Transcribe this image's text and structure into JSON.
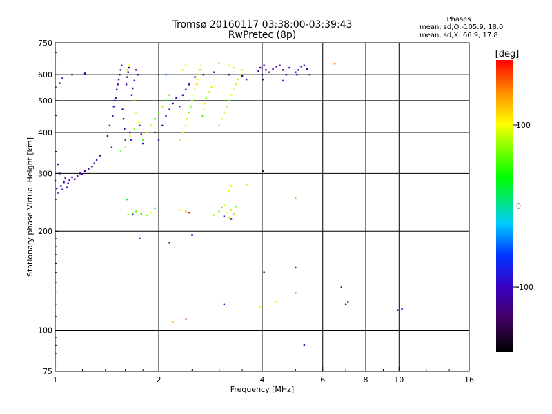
{
  "chart_data": {
    "type": "scatter",
    "title": "Tromsø 20160117 03:38:00-03:39:43",
    "subtitle": "RwPretec (8p)",
    "xlabel": "Frequency [MHz]",
    "ylabel": "Stationary phase Virtual Height [km]",
    "x_scale": "log",
    "y_scale": "log",
    "xlim": [
      1,
      16
    ],
    "ylim": [
      75,
      750
    ],
    "x_ticks": [
      1,
      2,
      4,
      6,
      8,
      10,
      16
    ],
    "y_ticks": [
      75,
      100,
      200,
      300,
      400,
      500,
      600,
      750
    ],
    "x_gridlines": [
      2,
      4,
      6,
      8,
      10
    ],
    "y_gridlines": [
      100,
      200,
      300,
      400,
      500,
      600
    ],
    "phase_stats": {
      "heading": "Phases",
      "line1": "mean, sd,O:-105.9, 18.0",
      "line2": "mean, sd,X:  66.9, 17.8"
    },
    "colorbar": {
      "label": "[deg]",
      "range": [
        -180,
        180
      ],
      "ticks": [
        {
          "value": 100,
          "label": "100"
        },
        {
          "value": 0,
          "label": "0"
        },
        {
          "value": -100,
          "label": "-100"
        }
      ]
    },
    "series": [
      {
        "values": [
          [
            1.0,
            285,
            -110
          ],
          [
            1.01,
            270,
            -110
          ],
          [
            1.02,
            262,
            -110
          ],
          [
            1.03,
            300,
            -110
          ],
          [
            1.04,
            275,
            -110
          ],
          [
            1.05,
            268,
            -110
          ],
          [
            1.06,
            282,
            -110
          ],
          [
            1.07,
            290,
            -110
          ],
          [
            1.08,
            272,
            -110
          ],
          [
            1.09,
            280,
            -110
          ],
          [
            1.1,
            286,
            -110
          ],
          [
            1.12,
            292,
            -110
          ],
          [
            1.14,
            288,
            -110
          ],
          [
            1.16,
            295,
            -110
          ],
          [
            1.18,
            300,
            -110
          ],
          [
            1.2,
            298,
            -110
          ],
          [
            1.22,
            305,
            -110
          ],
          [
            1.25,
            310,
            -110
          ],
          [
            1.28,
            315,
            -110
          ],
          [
            1.3,
            322,
            -110
          ],
          [
            1.32,
            330,
            -110
          ],
          [
            1.35,
            340,
            -110
          ],
          [
            1.02,
            320,
            -110
          ],
          [
            1.03,
            565,
            -110
          ],
          [
            1.05,
            585,
            -110
          ],
          [
            1.12,
            600,
            -110
          ],
          [
            1.22,
            605,
            -110
          ],
          [
            1.42,
            390,
            -110
          ],
          [
            1.44,
            420,
            -110
          ],
          [
            1.46,
            360,
            -110
          ],
          [
            1.47,
            450,
            -110
          ],
          [
            1.48,
            480,
            -110
          ],
          [
            1.49,
            500,
            -110
          ],
          [
            1.5,
            510,
            -110
          ],
          [
            1.51,
            540,
            -110
          ],
          [
            1.52,
            560,
            -110
          ],
          [
            1.53,
            580,
            -110
          ],
          [
            1.54,
            600,
            -110
          ],
          [
            1.55,
            620,
            -110
          ],
          [
            1.56,
            640,
            -110
          ],
          [
            1.57,
            470,
            -110
          ],
          [
            1.58,
            440,
            -110
          ],
          [
            1.59,
            410,
            -110
          ],
          [
            1.6,
            380,
            -110
          ],
          [
            1.61,
            560,
            -110
          ],
          [
            1.62,
            590,
            -110
          ],
          [
            1.63,
            610,
            -110
          ],
          [
            1.64,
            630,
            -110
          ],
          [
            1.65,
            400,
            -110
          ],
          [
            1.66,
            380,
            -110
          ],
          [
            1.67,
            520,
            -110
          ],
          [
            1.68,
            545,
            -110
          ],
          [
            1.7,
            575,
            -110
          ],
          [
            1.72,
            620,
            -110
          ],
          [
            1.74,
            600,
            -110
          ],
          [
            1.76,
            420,
            -110
          ],
          [
            1.78,
            395,
            -110
          ],
          [
            1.8,
            370,
            -110
          ],
          [
            1.95,
            400,
            -110
          ],
          [
            2.0,
            380,
            -110
          ],
          [
            2.05,
            420,
            -110
          ],
          [
            2.1,
            450,
            -110
          ],
          [
            2.15,
            470,
            -110
          ],
          [
            2.2,
            490,
            -110
          ],
          [
            2.25,
            510,
            -110
          ],
          [
            2.3,
            480,
            -110
          ],
          [
            2.35,
            520,
            -110
          ],
          [
            2.4,
            540,
            -110
          ],
          [
            2.45,
            560,
            -110
          ],
          [
            2.55,
            590,
            -110
          ],
          [
            2.7,
            600,
            -110
          ],
          [
            2.9,
            610,
            -110
          ],
          [
            3.2,
            600,
            -110
          ],
          [
            3.5,
            595,
            -110
          ],
          [
            3.6,
            580,
            -110
          ],
          [
            3.9,
            615,
            -110
          ],
          [
            3.95,
            630,
            -110
          ],
          [
            4.0,
            600,
            -110
          ],
          [
            4.02,
            580,
            -110
          ],
          [
            4.05,
            640,
            -110
          ],
          [
            4.1,
            620,
            -110
          ],
          [
            4.2,
            610,
            -110
          ],
          [
            4.3,
            625,
            -110
          ],
          [
            4.4,
            635,
            -110
          ],
          [
            4.5,
            640,
            -110
          ],
          [
            4.6,
            620,
            -110
          ],
          [
            4.7,
            600,
            -110
          ],
          [
            4.8,
            630,
            -110
          ],
          [
            5.0,
            610,
            -110
          ],
          [
            5.05,
            600,
            -110
          ],
          [
            5.1,
            620,
            -110
          ],
          [
            5.2,
            635,
            -110
          ],
          [
            5.3,
            640,
            -110
          ],
          [
            5.4,
            625,
            -110
          ],
          [
            5.5,
            600,
            -110
          ],
          [
            4.03,
            305,
            -115
          ],
          [
            3.1,
            120,
            -115
          ],
          [
            6.8,
            135,
            -115
          ],
          [
            7.0,
            120,
            -115
          ],
          [
            7.1,
            122,
            -115
          ],
          [
            5.3,
            90,
            -120
          ],
          [
            4.05,
            150,
            -120
          ],
          [
            5.0,
            155,
            -90
          ],
          [
            4.6,
            575,
            -60
          ],
          [
            9.9,
            115,
            -70
          ],
          [
            10.2,
            116,
            -70
          ],
          [
            1.68,
            225,
            -80
          ],
          [
            1.76,
            190,
            -80
          ],
          [
            2.5,
            195,
            -80
          ],
          [
            3.1,
            222,
            -80
          ],
          [
            2.15,
            185,
            -130
          ],
          [
            3.25,
            218,
            -125
          ],
          [
            2.4,
            230,
            -30
          ],
          [
            2.45,
            228,
            180
          ],
          [
            1.95,
            235,
            -10
          ],
          [
            2.1,
            600,
            -40
          ],
          [
            1.55,
            350,
            60
          ],
          [
            1.6,
            360,
            80
          ],
          [
            1.65,
            390,
            90
          ],
          [
            1.7,
            410,
            70
          ],
          [
            1.75,
            430,
            100
          ],
          [
            1.8,
            380,
            50
          ],
          [
            1.85,
            400,
            110
          ],
          [
            1.9,
            420,
            90
          ],
          [
            1.95,
            440,
            40
          ],
          [
            2.0,
            460,
            60
          ],
          [
            2.05,
            480,
            80
          ],
          [
            2.1,
            500,
            20
          ],
          [
            2.15,
            520,
            50
          ],
          [
            1.58,
            600,
            120
          ],
          [
            1.62,
            620,
            110
          ],
          [
            1.64,
            640,
            100
          ],
          [
            1.7,
            500,
            70
          ],
          [
            1.72,
            460,
            90
          ],
          [
            2.3,
            380,
            80
          ],
          [
            2.35,
            400,
            100
          ],
          [
            2.4,
            420,
            110
          ],
          [
            2.42,
            440,
            90
          ],
          [
            2.45,
            460,
            70
          ],
          [
            2.48,
            480,
            60
          ],
          [
            2.5,
            500,
            80
          ],
          [
            2.52,
            520,
            100
          ],
          [
            2.55,
            540,
            110
          ],
          [
            2.58,
            560,
            120
          ],
          [
            2.6,
            580,
            100
          ],
          [
            2.62,
            600,
            90
          ],
          [
            2.64,
            620,
            80
          ],
          [
            2.66,
            640,
            100
          ],
          [
            2.68,
            450,
            60
          ],
          [
            2.7,
            470,
            90
          ],
          [
            2.72,
            490,
            110
          ],
          [
            2.75,
            510,
            70
          ],
          [
            2.8,
            530,
            80
          ],
          [
            2.85,
            550,
            90
          ],
          [
            2.3,
            600,
            120
          ],
          [
            2.35,
            620,
            100
          ],
          [
            2.4,
            640,
            90
          ],
          [
            3.0,
            420,
            70
          ],
          [
            3.05,
            440,
            90
          ],
          [
            3.1,
            460,
            110
          ],
          [
            3.15,
            480,
            80
          ],
          [
            3.2,
            500,
            60
          ],
          [
            3.25,
            520,
            100
          ],
          [
            3.3,
            540,
            90
          ],
          [
            3.35,
            560,
            110
          ],
          [
            3.4,
            580,
            80
          ],
          [
            3.45,
            600,
            70
          ],
          [
            3.5,
            620,
            90
          ],
          [
            3.2,
            640,
            100
          ],
          [
            3.3,
            630,
            120
          ],
          [
            1.63,
            225,
            80
          ],
          [
            1.68,
            228,
            90
          ],
          [
            1.72,
            230,
            60
          ],
          [
            1.78,
            226,
            40
          ],
          [
            1.85,
            224,
            80
          ],
          [
            1.9,
            228,
            100
          ],
          [
            2.32,
            232,
            110
          ],
          [
            2.4,
            230,
            90
          ],
          [
            2.9,
            224,
            80
          ],
          [
            3.0,
            230,
            70
          ],
          [
            3.05,
            236,
            60
          ],
          [
            3.1,
            240,
            90
          ],
          [
            3.15,
            228,
            100
          ],
          [
            3.2,
            220,
            110
          ],
          [
            3.25,
            232,
            80
          ],
          [
            3.3,
            226,
            70
          ],
          [
            3.35,
            238,
            60
          ],
          [
            3.2,
            265,
            100
          ],
          [
            3.25,
            275,
            90
          ],
          [
            3.6,
            278,
            70
          ],
          [
            3.95,
            118,
            100
          ],
          [
            4.4,
            122,
            110
          ],
          [
            5.0,
            130,
            140
          ],
          [
            2.2,
            106,
            130
          ],
          [
            2.4,
            108,
            160
          ],
          [
            6.5,
            648,
            150
          ],
          [
            1.62,
            250,
            30
          ],
          [
            3.0,
            650,
            70
          ],
          [
            5.0,
            252,
            55
          ]
        ]
      }
    ]
  }
}
